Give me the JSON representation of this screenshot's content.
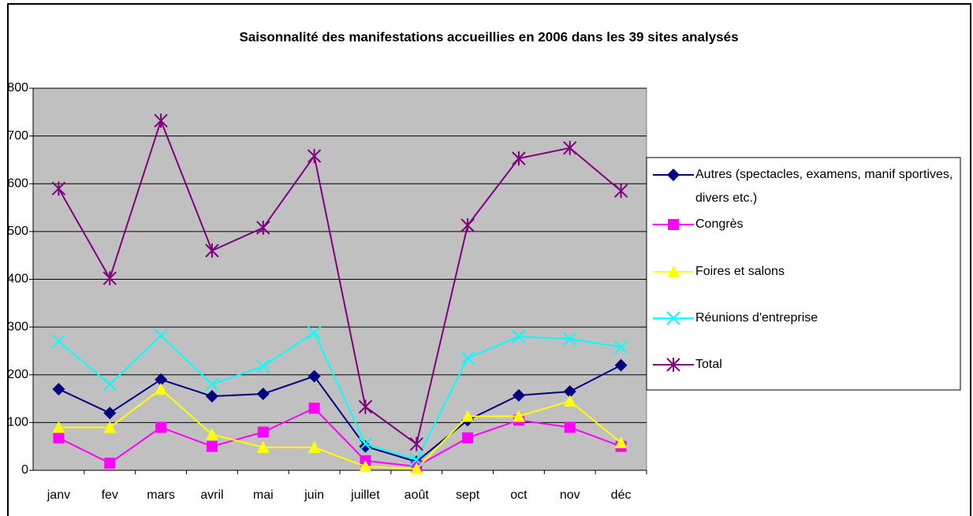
{
  "chart_data": {
    "type": "line",
    "title": "Saisonnalité des manifestations accueillies en 2006 dans les 39 sites analysés",
    "categories": [
      "janv",
      "fev",
      "mars",
      "avril",
      "mai",
      "juin",
      "juillet",
      "août",
      "sept",
      "oct",
      "nov",
      "déc"
    ],
    "series": [
      {
        "name": "Autres (spectacles, examens, manif sportives, divers etc.)",
        "color": "#000080",
        "marker": "diamond",
        "values": [
          170,
          120,
          190,
          155,
          160,
          197,
          50,
          18,
          105,
          157,
          165,
          220
        ]
      },
      {
        "name": "Congrès",
        "color": "#ff00ff",
        "marker": "square",
        "values": [
          68,
          15,
          90,
          50,
          80,
          130,
          20,
          8,
          68,
          105,
          90,
          50
        ]
      },
      {
        "name": "Foires et salons",
        "color": "#ffff00",
        "marker": "triangle",
        "values": [
          90,
          90,
          170,
          75,
          48,
          48,
          8,
          3,
          113,
          113,
          145,
          58
        ]
      },
      {
        "name": "Réunions d'entreprise",
        "color": "#00ffff",
        "marker": "x",
        "values": [
          270,
          180,
          282,
          180,
          218,
          288,
          55,
          22,
          235,
          280,
          275,
          258
        ]
      },
      {
        "name": "Total",
        "color": "#800080",
        "marker": "star",
        "values": [
          590,
          402,
          732,
          460,
          508,
          658,
          133,
          55,
          513,
          653,
          675,
          585
        ]
      }
    ],
    "ylim": [
      0,
      800
    ],
    "yticks": [
      0,
      100,
      200,
      300,
      400,
      500,
      600,
      700,
      800
    ],
    "grid": true,
    "legend": "right"
  }
}
